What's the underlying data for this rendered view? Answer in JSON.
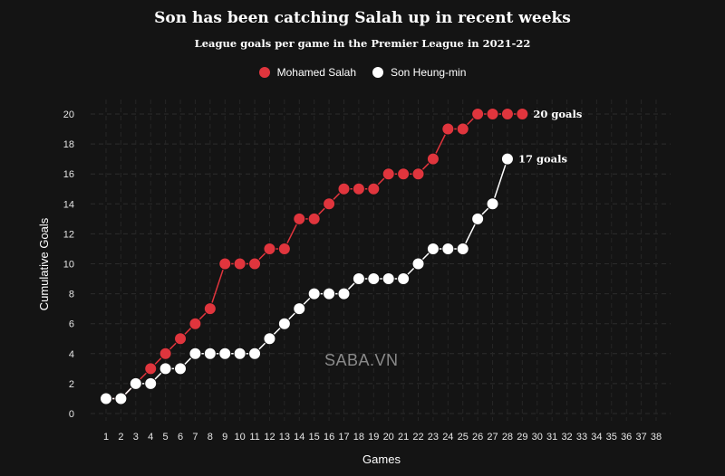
{
  "chart_data": {
    "type": "line",
    "title": "Son has been catching Salah up in recent weeks",
    "subtitle": "League goals per game in the Premier League in 2021-22",
    "xlabel": "Games",
    "ylabel": "Cumulative Goals",
    "xlim": [
      1,
      38
    ],
    "ylim": [
      0,
      20
    ],
    "x_ticks": [
      1,
      2,
      3,
      4,
      5,
      6,
      7,
      8,
      9,
      10,
      11,
      12,
      13,
      14,
      15,
      16,
      17,
      18,
      19,
      20,
      21,
      22,
      23,
      24,
      25,
      26,
      27,
      28,
      29,
      30,
      31,
      32,
      33,
      34,
      35,
      36,
      37,
      38
    ],
    "y_ticks": [
      0,
      2,
      4,
      6,
      8,
      10,
      12,
      14,
      16,
      18,
      20
    ],
    "grid": true,
    "legend_position": "top",
    "series": [
      {
        "name": "Mohamed Salah",
        "color": "#e0353d",
        "x": [
          1,
          2,
          3,
          4,
          5,
          6,
          7,
          8,
          9,
          10,
          11,
          12,
          13,
          14,
          15,
          16,
          17,
          18,
          19,
          20,
          21,
          22,
          23,
          24,
          25,
          26,
          27,
          28,
          29
        ],
        "y": [
          1,
          1,
          2,
          3,
          4,
          5,
          6,
          7,
          10,
          10,
          10,
          11,
          11,
          13,
          13,
          14,
          15,
          15,
          15,
          16,
          16,
          16,
          17,
          19,
          19,
          20,
          20,
          20,
          20
        ],
        "end_label": "20 goals"
      },
      {
        "name": "Son Heung-min",
        "color": "#ffffff",
        "x": [
          1,
          2,
          3,
          4,
          5,
          6,
          7,
          8,
          9,
          10,
          11,
          12,
          13,
          14,
          15,
          16,
          17,
          18,
          19,
          20,
          21,
          22,
          23,
          24,
          25,
          26,
          27,
          28
        ],
        "y": [
          1,
          1,
          2,
          2,
          3,
          3,
          4,
          4,
          4,
          4,
          4,
          5,
          6,
          7,
          8,
          8,
          8,
          9,
          9,
          9,
          9,
          10,
          11,
          11,
          11,
          13,
          14,
          17
        ],
        "end_label": "17 goals"
      }
    ]
  },
  "watermark": "SABA.VN"
}
